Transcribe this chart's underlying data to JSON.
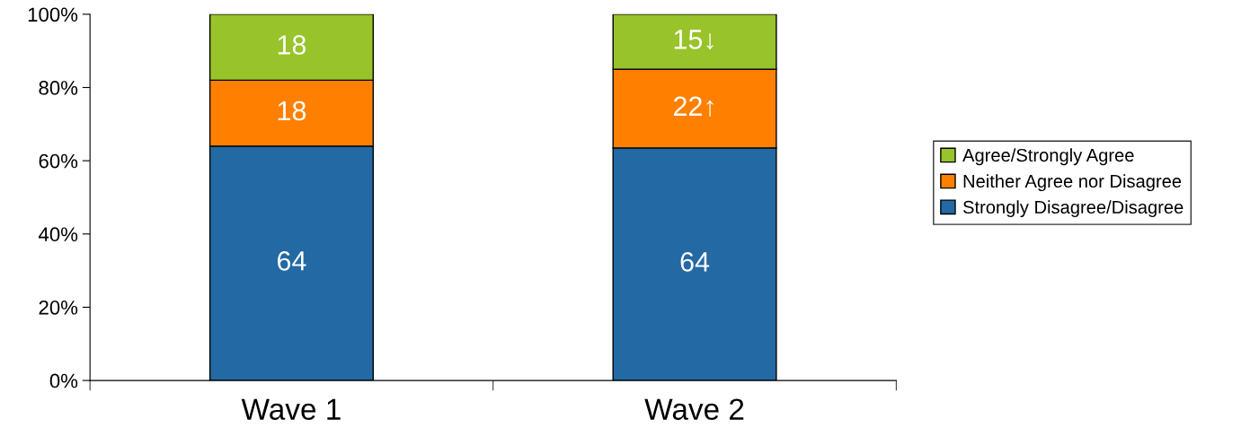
{
  "chart_data": {
    "type": "bar",
    "stacked": true,
    "categories": [
      "Wave 1",
      "Wave 2"
    ],
    "series": [
      {
        "name": "Strongly Disagree/Disagree",
        "color": "#2369a3",
        "values": [
          64,
          63.5
        ],
        "value_labels": [
          "64",
          "64"
        ]
      },
      {
        "name": "Neither Agree nor Disagree",
        "color": "#ff8000",
        "values": [
          18,
          21.5
        ],
        "value_labels": [
          "18",
          "22↑"
        ]
      },
      {
        "name": "Agree/Strongly Agree",
        "color": "#99c32a",
        "values": [
          18,
          15
        ],
        "value_labels": [
          "18",
          "15↓"
        ]
      }
    ],
    "ylim": [
      0,
      100
    ],
    "yticks": [
      {
        "value": 0,
        "label": "0%"
      },
      {
        "value": 20,
        "label": "20%"
      },
      {
        "value": 40,
        "label": "40%"
      },
      {
        "value": 60,
        "label": "60%"
      },
      {
        "value": 80,
        "label": "80%"
      },
      {
        "value": 100,
        "label": "100%"
      }
    ],
    "grid": false,
    "legend": "right"
  }
}
